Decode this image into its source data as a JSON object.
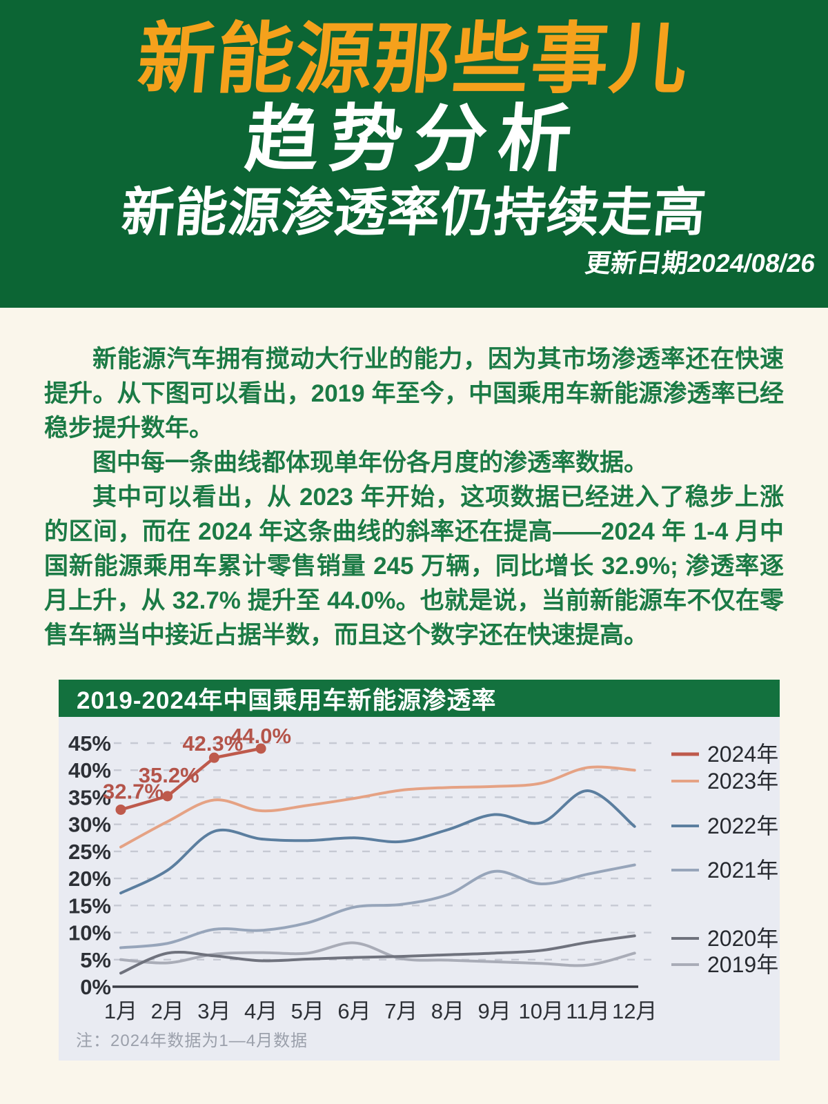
{
  "banner": {
    "title": "新能源那些事儿",
    "subtitle": "趋势分析",
    "headline": "新能源渗透率仍持续走高",
    "update_date": "更新日期2024/08/26",
    "colors": {
      "bg": "#0C6534",
      "title": "#F5A11C",
      "text": "#FFFFFF"
    }
  },
  "article": {
    "paragraphs": [
      "新能源汽车拥有搅动大行业的能力，因为其市场渗透率还在快速提升。从下图可以看出，2019 年至今，中国乘用车新能源渗透率已经稳步提升数年。",
      "图中每一条曲线都体现单年份各月度的渗透率数据。",
      "其中可以看出，从 2023 年开始，这项数据已经进入了稳步上涨的区间，而在 2024 年这条曲线的斜率还在提高——2024 年 1-4 月中国新能源乘用车累计零售销量 245 万辆，同比增长 32.9%; 渗透率逐月上升，从 32.7% 提升至 44.0%。也就是说，当前新能源车不仅在零售车辆当中接近占据半数，而且这个数字还在快速提高。"
    ]
  },
  "chart": {
    "note": "注：2024年数据为1—4月数据"
  },
  "chart_data": {
    "type": "line",
    "title": "2019-2024年中国乘用车新能源渗透率",
    "categories": [
      "1月",
      "2月",
      "3月",
      "4月",
      "5月",
      "6月",
      "7月",
      "8月",
      "9月",
      "10月",
      "11月",
      "12月"
    ],
    "ylim": [
      0,
      45
    ],
    "yticks": [
      0,
      5,
      10,
      15,
      20,
      25,
      30,
      35,
      40,
      45
    ],
    "ytick_suffix": "%",
    "grid": "dashed-horizontal",
    "legend_position": "right",
    "colors": {
      "grid": "#C6C9D3",
      "axis": "#3A3D44",
      "tick_label": "#2D3036",
      "legend_label": "#26292F",
      "point_label": "#B4544A"
    },
    "series": [
      {
        "name": "2024年",
        "color": "#BE5A4C",
        "smooth": false,
        "markers": true,
        "values": [
          32.7,
          35.2,
          42.3,
          44.0
        ],
        "point_labels": [
          "32.7%",
          "35.2%",
          "42.3%",
          "44.0%"
        ]
      },
      {
        "name": "2023年",
        "color": "#E5A284",
        "smooth": true,
        "markers": false,
        "values": [
          25.8,
          30.5,
          34.5,
          32.5,
          33.5,
          34.8,
          36.3,
          36.8,
          37.0,
          37.6,
          40.5,
          40.0
        ]
      },
      {
        "name": "2022年",
        "color": "#5B7E9F",
        "smooth": true,
        "markers": false,
        "values": [
          17.3,
          21.5,
          28.7,
          27.3,
          27.0,
          27.5,
          26.8,
          29.0,
          31.8,
          30.3,
          36.2,
          29.6
        ]
      },
      {
        "name": "2021年",
        "color": "#97A5BA",
        "smooth": true,
        "markers": false,
        "values": [
          7.2,
          8.0,
          10.6,
          10.4,
          11.8,
          14.7,
          15.2,
          17.0,
          21.3,
          19.0,
          20.8,
          22.5
        ]
      },
      {
        "name": "2020年",
        "color": "#6F727D",
        "smooth": true,
        "markers": false,
        "values": [
          2.5,
          6.2,
          5.7,
          4.8,
          5.1,
          5.4,
          5.6,
          5.9,
          6.2,
          6.7,
          8.2,
          9.4
        ]
      },
      {
        "name": "2019年",
        "color": "#A9ACB7",
        "smooth": true,
        "markers": false,
        "values": [
          5.0,
          4.4,
          6.0,
          6.3,
          6.2,
          8.1,
          5.2,
          4.9,
          4.6,
          4.3,
          4.0,
          6.2
        ]
      }
    ]
  }
}
